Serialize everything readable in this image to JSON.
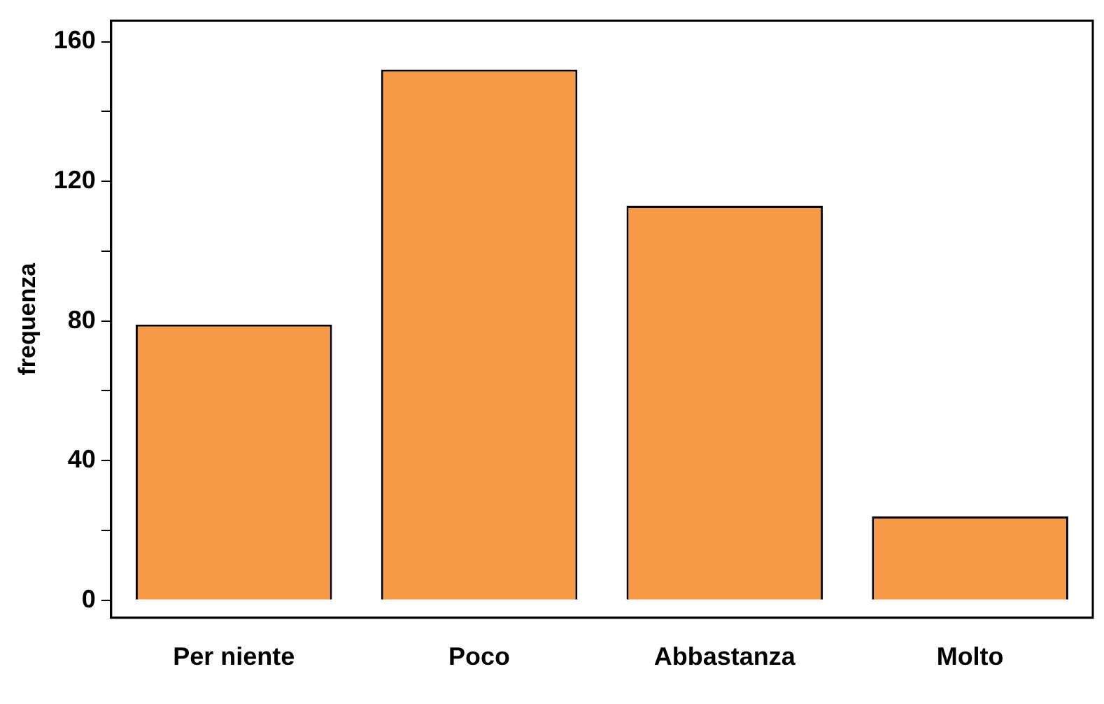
{
  "chart_data": {
    "type": "bar",
    "ylabel": "frequenza",
    "categories": [
      "Per niente",
      "Poco",
      "Abbastanza",
      "Molto"
    ],
    "values": [
      79,
      152,
      113,
      24
    ],
    "color": "#f79a48",
    "ylim": [
      -5,
      166
    ],
    "yticks": [
      0,
      {
        "value": 20,
        "label": null
      },
      40,
      {
        "value": 60,
        "label": null
      },
      80,
      {
        "value": 100,
        "label": null
      },
      120,
      {
        "value": 140,
        "label": null
      },
      160
    ],
    "grid": false,
    "legend": false
  }
}
